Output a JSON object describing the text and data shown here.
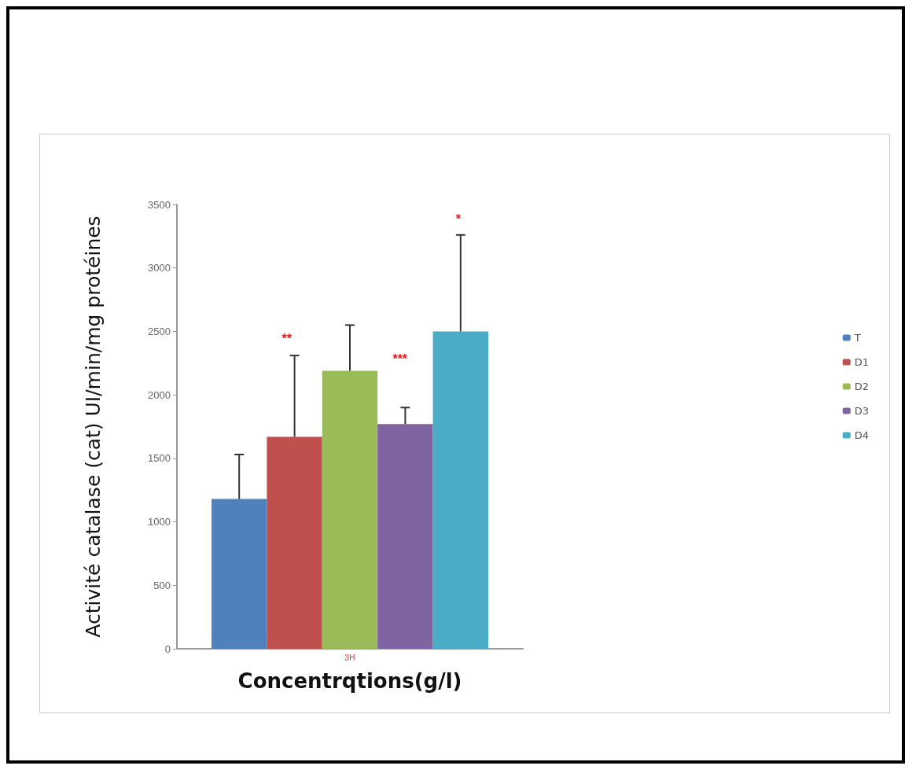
{
  "chart_data": {
    "type": "bar",
    "xlabel": "Concentrqtions(g/l)",
    "ylabel": "Activité catalase (cat) UI/min/mg protéines",
    "categories": [
      "3H"
    ],
    "series": [
      {
        "name": "T",
        "color": "#4f81bd",
        "values": [
          1180
        ],
        "errors": [
          350
        ]
      },
      {
        "name": "D1",
        "color": "#c0504d",
        "values": [
          1670
        ],
        "errors": [
          640
        ]
      },
      {
        "name": "D2",
        "color": "#9bbb59",
        "values": [
          2190
        ],
        "errors": [
          360
        ]
      },
      {
        "name": "D3",
        "color": "#8064a2",
        "values": [
          1770
        ],
        "errors": [
          130
        ]
      },
      {
        "name": "D4",
        "color": "#4bacc6",
        "values": [
          2500
        ],
        "errors": [
          760
        ]
      }
    ],
    "ylim": [
      0,
      3500
    ],
    "yticks": [
      0,
      500,
      1000,
      1500,
      2000,
      2500,
      3000,
      3500
    ],
    "grid": false,
    "legend": "right",
    "annotations": [
      "**",
      "***",
      "*"
    ]
  }
}
